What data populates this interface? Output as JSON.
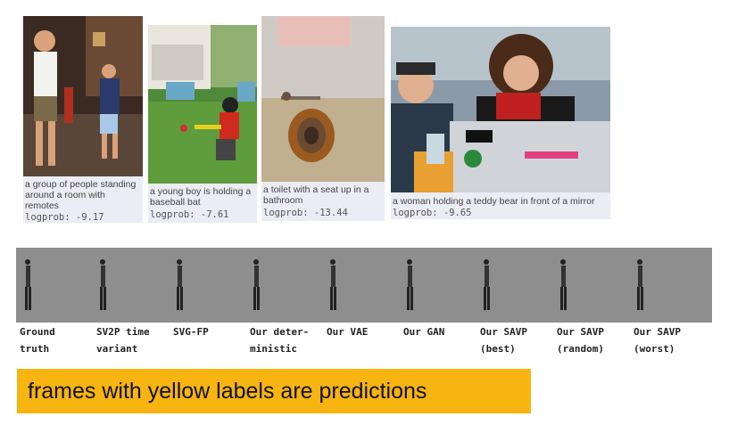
{
  "captions": [
    {
      "text": "a group of people standing around a room with remotes",
      "logprob": "logprob: -9.17"
    },
    {
      "text": "a young boy is holding a baseball bat",
      "logprob": "logprob: -7.61"
    },
    {
      "text": "a toilet with a seat up in a bathroom",
      "logprob": "logprob: -13.44"
    },
    {
      "text": "a woman holding a teddy bear in front of a mirror",
      "logprob": "logprob: -9.65"
    }
  ],
  "frame_labels": [
    "Ground\ntruth",
    "SV2P time\nvariant",
    "SVG-FP",
    "Our deter-\nministic",
    "Our VAE",
    "Our GAN",
    "Our SAVP\n(best)",
    "Our SAVP\n(random)",
    "Our SAVP\n(worst)"
  ],
  "banner": {
    "text": "frames with yellow labels are predictions"
  },
  "colors": {
    "banner": "#f8b410"
  }
}
